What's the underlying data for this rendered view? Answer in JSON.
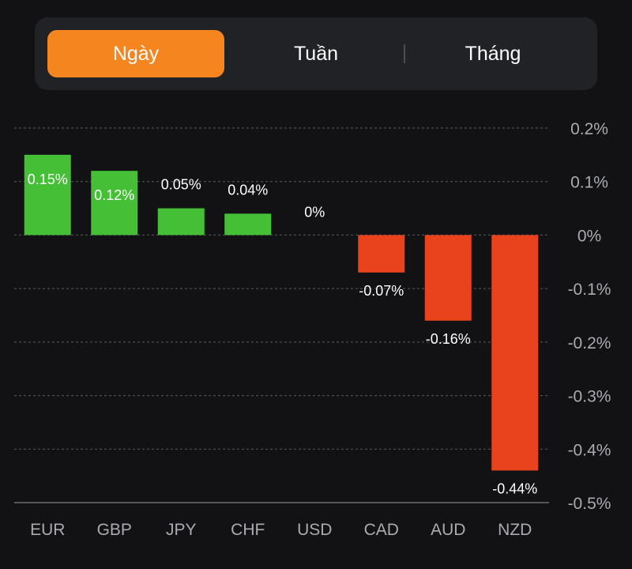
{
  "tabs": [
    {
      "label": "Ngày",
      "active": true
    },
    {
      "label": "Tuần",
      "active": false
    },
    {
      "label": "Tháng",
      "active": false
    }
  ],
  "colors": {
    "positive": "#44bf36",
    "negative": "#e8431d",
    "accent": "#f5851f",
    "background": "#121214",
    "text": "#ffffff",
    "axis_text": "#a9abb0",
    "grid": "#5a5c60"
  },
  "chart_data": {
    "type": "bar",
    "categories": [
      "EUR",
      "GBP",
      "JPY",
      "CHF",
      "USD",
      "CAD",
      "AUD",
      "NZD"
    ],
    "values": [
      0.15,
      0.12,
      0.05,
      0.04,
      0,
      -0.07,
      -0.16,
      -0.44
    ],
    "data_labels": [
      "0.15%",
      "0.12%",
      "0.05%",
      "0.04%",
      "0%",
      "-0.07%",
      "-0.16%",
      "-0.44%"
    ],
    "yticks": [
      0.2,
      0.1,
      0,
      -0.1,
      -0.2,
      -0.3,
      -0.4,
      -0.5
    ],
    "ytick_labels": [
      "0.2%",
      "0.1%",
      "0%",
      "-0.1%",
      "-0.2%",
      "-0.3%",
      "-0.4%",
      "-0.5%"
    ],
    "ylim": [
      -0.5,
      0.2
    ],
    "axis_position": "right",
    "grid": true,
    "title": "",
    "xlabel": "",
    "ylabel": ""
  }
}
